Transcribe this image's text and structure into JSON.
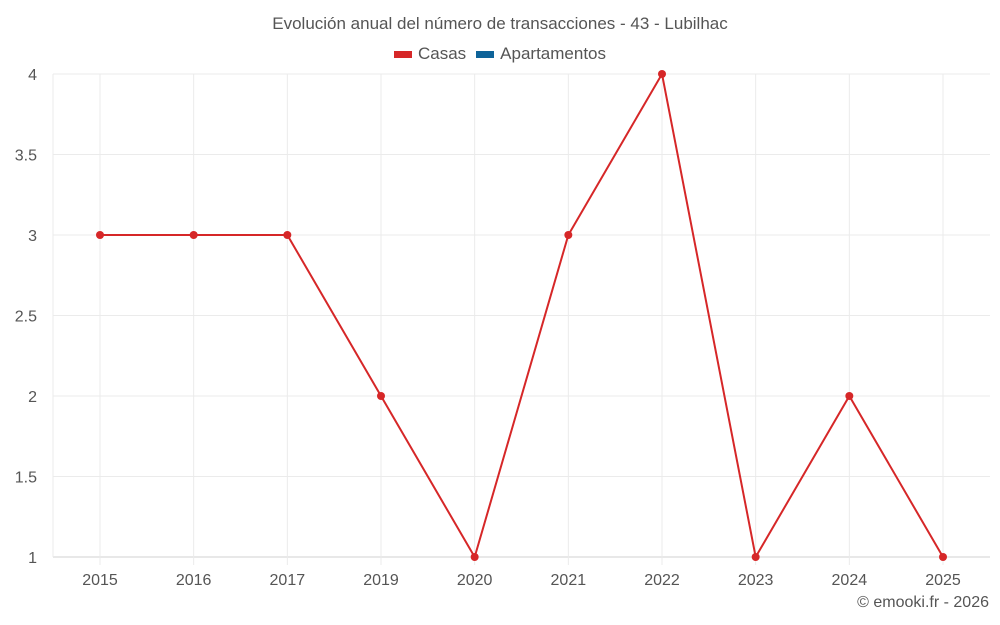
{
  "title": "Evolución anual del número de transacciones - 43 - Lubilhac",
  "legend": [
    {
      "label": "Casas",
      "color": "#d62728"
    },
    {
      "label": "Apartamentos",
      "color": "#0e6399"
    }
  ],
  "credit": "© emooki.fr - 2026",
  "chart_data": {
    "type": "line",
    "title": "Evolución anual del número de transacciones - 43 - Lubilhac",
    "xlabel": "",
    "ylabel": "",
    "categories": [
      "2015",
      "2016",
      "2017",
      "2019",
      "2020",
      "2021",
      "2022",
      "2023",
      "2024",
      "2025"
    ],
    "series": [
      {
        "name": "Casas",
        "color": "#d62728",
        "values": [
          3,
          3,
          3,
          2,
          1,
          3,
          4,
          1,
          2,
          1
        ]
      },
      {
        "name": "Apartamentos",
        "color": "#0e6399",
        "values": []
      }
    ],
    "ylim": [
      1,
      4
    ],
    "yticks": [
      "1",
      "1.5",
      "2",
      "2.5",
      "3",
      "3.5",
      "4"
    ],
    "grid": true,
    "legend_position": "top"
  }
}
